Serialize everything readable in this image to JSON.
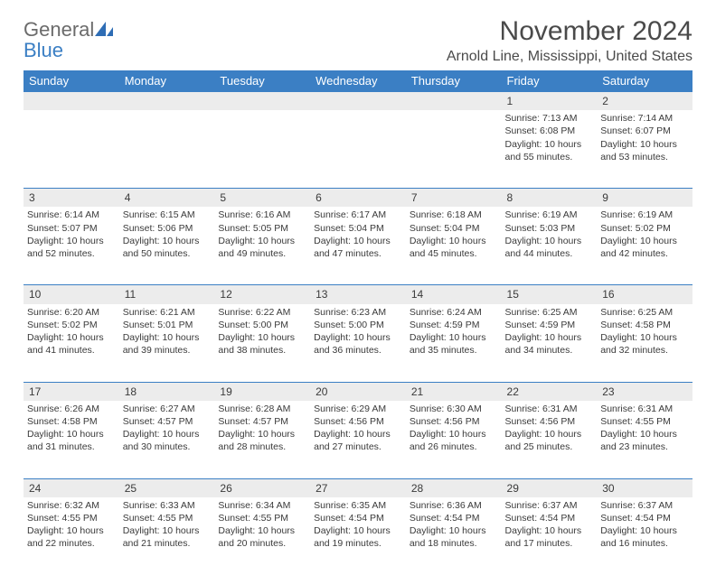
{
  "logo": {
    "word1": "General",
    "word2": "Blue"
  },
  "title": "November 2024",
  "location": "Arnold Line, Mississippi, United States",
  "colors": {
    "header_bg": "#3b7fc4",
    "header_text": "#ffffff",
    "daynum_bg": "#ececec",
    "border": "#3b7fc4",
    "text": "#3a3a3a"
  },
  "day_headers": [
    "Sunday",
    "Monday",
    "Tuesday",
    "Wednesday",
    "Thursday",
    "Friday",
    "Saturday"
  ],
  "weeks": [
    [
      {
        "num": "",
        "sunrise": "",
        "sunset": "",
        "daylight": ""
      },
      {
        "num": "",
        "sunrise": "",
        "sunset": "",
        "daylight": ""
      },
      {
        "num": "",
        "sunrise": "",
        "sunset": "",
        "daylight": ""
      },
      {
        "num": "",
        "sunrise": "",
        "sunset": "",
        "daylight": ""
      },
      {
        "num": "",
        "sunrise": "",
        "sunset": "",
        "daylight": ""
      },
      {
        "num": "1",
        "sunrise": "Sunrise: 7:13 AM",
        "sunset": "Sunset: 6:08 PM",
        "daylight": "Daylight: 10 hours and 55 minutes."
      },
      {
        "num": "2",
        "sunrise": "Sunrise: 7:14 AM",
        "sunset": "Sunset: 6:07 PM",
        "daylight": "Daylight: 10 hours and 53 minutes."
      }
    ],
    [
      {
        "num": "3",
        "sunrise": "Sunrise: 6:14 AM",
        "sunset": "Sunset: 5:07 PM",
        "daylight": "Daylight: 10 hours and 52 minutes."
      },
      {
        "num": "4",
        "sunrise": "Sunrise: 6:15 AM",
        "sunset": "Sunset: 5:06 PM",
        "daylight": "Daylight: 10 hours and 50 minutes."
      },
      {
        "num": "5",
        "sunrise": "Sunrise: 6:16 AM",
        "sunset": "Sunset: 5:05 PM",
        "daylight": "Daylight: 10 hours and 49 minutes."
      },
      {
        "num": "6",
        "sunrise": "Sunrise: 6:17 AM",
        "sunset": "Sunset: 5:04 PM",
        "daylight": "Daylight: 10 hours and 47 minutes."
      },
      {
        "num": "7",
        "sunrise": "Sunrise: 6:18 AM",
        "sunset": "Sunset: 5:04 PM",
        "daylight": "Daylight: 10 hours and 45 minutes."
      },
      {
        "num": "8",
        "sunrise": "Sunrise: 6:19 AM",
        "sunset": "Sunset: 5:03 PM",
        "daylight": "Daylight: 10 hours and 44 minutes."
      },
      {
        "num": "9",
        "sunrise": "Sunrise: 6:19 AM",
        "sunset": "Sunset: 5:02 PM",
        "daylight": "Daylight: 10 hours and 42 minutes."
      }
    ],
    [
      {
        "num": "10",
        "sunrise": "Sunrise: 6:20 AM",
        "sunset": "Sunset: 5:02 PM",
        "daylight": "Daylight: 10 hours and 41 minutes."
      },
      {
        "num": "11",
        "sunrise": "Sunrise: 6:21 AM",
        "sunset": "Sunset: 5:01 PM",
        "daylight": "Daylight: 10 hours and 39 minutes."
      },
      {
        "num": "12",
        "sunrise": "Sunrise: 6:22 AM",
        "sunset": "Sunset: 5:00 PM",
        "daylight": "Daylight: 10 hours and 38 minutes."
      },
      {
        "num": "13",
        "sunrise": "Sunrise: 6:23 AM",
        "sunset": "Sunset: 5:00 PM",
        "daylight": "Daylight: 10 hours and 36 minutes."
      },
      {
        "num": "14",
        "sunrise": "Sunrise: 6:24 AM",
        "sunset": "Sunset: 4:59 PM",
        "daylight": "Daylight: 10 hours and 35 minutes."
      },
      {
        "num": "15",
        "sunrise": "Sunrise: 6:25 AM",
        "sunset": "Sunset: 4:59 PM",
        "daylight": "Daylight: 10 hours and 34 minutes."
      },
      {
        "num": "16",
        "sunrise": "Sunrise: 6:25 AM",
        "sunset": "Sunset: 4:58 PM",
        "daylight": "Daylight: 10 hours and 32 minutes."
      }
    ],
    [
      {
        "num": "17",
        "sunrise": "Sunrise: 6:26 AM",
        "sunset": "Sunset: 4:58 PM",
        "daylight": "Daylight: 10 hours and 31 minutes."
      },
      {
        "num": "18",
        "sunrise": "Sunrise: 6:27 AM",
        "sunset": "Sunset: 4:57 PM",
        "daylight": "Daylight: 10 hours and 30 minutes."
      },
      {
        "num": "19",
        "sunrise": "Sunrise: 6:28 AM",
        "sunset": "Sunset: 4:57 PM",
        "daylight": "Daylight: 10 hours and 28 minutes."
      },
      {
        "num": "20",
        "sunrise": "Sunrise: 6:29 AM",
        "sunset": "Sunset: 4:56 PM",
        "daylight": "Daylight: 10 hours and 27 minutes."
      },
      {
        "num": "21",
        "sunrise": "Sunrise: 6:30 AM",
        "sunset": "Sunset: 4:56 PM",
        "daylight": "Daylight: 10 hours and 26 minutes."
      },
      {
        "num": "22",
        "sunrise": "Sunrise: 6:31 AM",
        "sunset": "Sunset: 4:56 PM",
        "daylight": "Daylight: 10 hours and 25 minutes."
      },
      {
        "num": "23",
        "sunrise": "Sunrise: 6:31 AM",
        "sunset": "Sunset: 4:55 PM",
        "daylight": "Daylight: 10 hours and 23 minutes."
      }
    ],
    [
      {
        "num": "24",
        "sunrise": "Sunrise: 6:32 AM",
        "sunset": "Sunset: 4:55 PM",
        "daylight": "Daylight: 10 hours and 22 minutes."
      },
      {
        "num": "25",
        "sunrise": "Sunrise: 6:33 AM",
        "sunset": "Sunset: 4:55 PM",
        "daylight": "Daylight: 10 hours and 21 minutes."
      },
      {
        "num": "26",
        "sunrise": "Sunrise: 6:34 AM",
        "sunset": "Sunset: 4:55 PM",
        "daylight": "Daylight: 10 hours and 20 minutes."
      },
      {
        "num": "27",
        "sunrise": "Sunrise: 6:35 AM",
        "sunset": "Sunset: 4:54 PM",
        "daylight": "Daylight: 10 hours and 19 minutes."
      },
      {
        "num": "28",
        "sunrise": "Sunrise: 6:36 AM",
        "sunset": "Sunset: 4:54 PM",
        "daylight": "Daylight: 10 hours and 18 minutes."
      },
      {
        "num": "29",
        "sunrise": "Sunrise: 6:37 AM",
        "sunset": "Sunset: 4:54 PM",
        "daylight": "Daylight: 10 hours and 17 minutes."
      },
      {
        "num": "30",
        "sunrise": "Sunrise: 6:37 AM",
        "sunset": "Sunset: 4:54 PM",
        "daylight": "Daylight: 10 hours and 16 minutes."
      }
    ]
  ]
}
